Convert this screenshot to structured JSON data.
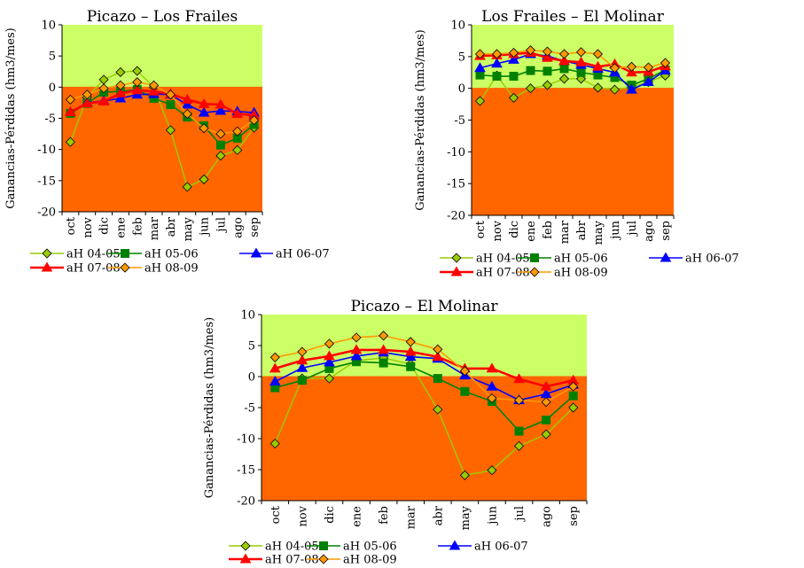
{
  "colors": {
    "gain_zone": "#ccff66",
    "loss_zone": "#ff6600",
    "series": {
      "aH 04-05": "#99cc00",
      "aH 05-06": "#008000",
      "aH 06-07": "#0000ff",
      "aH 07-08": "#ff0000",
      "aH 08-09": "#ff9900"
    }
  },
  "chart_data": [
    {
      "type": "line",
      "title": "Picazo – Los Frailes",
      "ylabel": "Ganancias-Pérdidas (hm3/mes)",
      "xlabel": "",
      "ylim": [
        -20,
        10
      ],
      "yticks": [
        10,
        5,
        0,
        -5,
        -10,
        -15,
        -20
      ],
      "categories": [
        "oct",
        "nov",
        "dic",
        "ene",
        "feb",
        "mar",
        "abr",
        "may",
        "jun",
        "jul",
        "ago",
        "sep"
      ],
      "background_bands": [
        {
          "from": 0,
          "to": 10,
          "color": "#ccff66"
        },
        {
          "from": -20,
          "to": 0,
          "color": "#ff6600"
        }
      ],
      "legend_position": "bottom",
      "series": [
        {
          "name": "aH 04-05",
          "marker": "diamond",
          "values": [
            -8.8,
            -1.6,
            1.2,
            2.4,
            2.6,
            0.0,
            -6.9,
            -16.0,
            -14.8,
            -11.0,
            -10.1,
            -6.5
          ]
        },
        {
          "name": "aH 05-06",
          "marker": "square",
          "values": [
            -4.2,
            -2.6,
            -0.8,
            -0.7,
            -0.4,
            -1.8,
            -2.8,
            -4.8,
            -6.2,
            -9.3,
            -8.2,
            -6.0
          ]
        },
        {
          "name": "aH 06-07",
          "marker": "triangle",
          "values": [
            -4.0,
            -2.5,
            -2.2,
            -1.8,
            -1.2,
            -1.1,
            -1.2,
            -2.8,
            -4.1,
            -3.8,
            -3.9,
            -4.1
          ]
        },
        {
          "name": "aH 07-08",
          "marker": "triangle",
          "values": [
            -4.0,
            -2.6,
            -2.3,
            -1.0,
            -0.5,
            -0.7,
            -1.1,
            -2.0,
            -2.7,
            -2.8,
            -4.3,
            -4.5
          ]
        },
        {
          "name": "aH 08-09",
          "marker": "diamond",
          "values": [
            -2.0,
            -1.2,
            -0.2,
            0.3,
            0.8,
            0.3,
            -1.2,
            -4.3,
            -6.6,
            -7.5,
            -7.1,
            -5.3
          ]
        }
      ]
    },
    {
      "type": "line",
      "title": "Los Frailes – El Molinar",
      "ylabel": "Ganancias-Pérdidas (hm3/mes)",
      "xlabel": "",
      "ylim": [
        -20,
        10
      ],
      "yticks": [
        10,
        5,
        0,
        -5,
        -10,
        -15,
        -20
      ],
      "categories": [
        "oct",
        "nov",
        "dic",
        "ene",
        "feb",
        "mar",
        "abr",
        "may",
        "jun",
        "jul",
        "ago",
        "sep"
      ],
      "background_bands": [
        {
          "from": 0,
          "to": 10,
          "color": "#ccff66"
        },
        {
          "from": -20,
          "to": 0,
          "color": "#ff6600"
        }
      ],
      "legend_position": "bottom",
      "series": [
        {
          "name": "aH 04-05",
          "marker": "diamond",
          "values": [
            -2.0,
            2.0,
            -1.5,
            0.0,
            0.5,
            1.5,
            1.5,
            0.1,
            -0.2,
            0.2,
            1.0,
            2.0
          ]
        },
        {
          "name": "aH 05-06",
          "marker": "square",
          "values": [
            2.1,
            1.9,
            1.9,
            2.8,
            2.7,
            3.1,
            2.5,
            2.1,
            1.7,
            0.5,
            1.5,
            2.9
          ]
        },
        {
          "name": "aH 06-07",
          "marker": "triangle",
          "values": [
            3.2,
            3.9,
            4.5,
            5.4,
            5.1,
            4.3,
            3.7,
            3.1,
            2.5,
            -0.2,
            1.0,
            2.8
          ]
        },
        {
          "name": "aH 07-08",
          "marker": "triangle",
          "values": [
            5.1,
            5.2,
            5.4,
            5.6,
            4.8,
            4.3,
            4.1,
            3.4,
            3.8,
            2.5,
            2.6,
            3.5
          ]
        },
        {
          "name": "aH 08-09",
          "marker": "diamond",
          "values": [
            5.4,
            5.4,
            5.6,
            6.0,
            5.8,
            5.4,
            5.7,
            5.4,
            3.2,
            3.4,
            3.3,
            4.0
          ]
        }
      ]
    },
    {
      "type": "line",
      "title": "Picazo – El Molinar",
      "ylabel": "Ganancias-Pérdidas (hm3/mes)",
      "xlabel": "",
      "ylim": [
        -20,
        10
      ],
      "yticks": [
        10,
        5,
        0,
        -5,
        -10,
        -15,
        -20
      ],
      "categories": [
        "oct",
        "nov",
        "dic",
        "ene",
        "feb",
        "mar",
        "abr",
        "may",
        "jun",
        "jul",
        "ago",
        "sep"
      ],
      "background_bands": [
        {
          "from": 0,
          "to": 10,
          "color": "#ccff66"
        },
        {
          "from": -20,
          "to": 0,
          "color": "#ff6600"
        }
      ],
      "legend_position": "bottom",
      "series": [
        {
          "name": "aH 04-05",
          "marker": "diamond",
          "values": [
            -10.8,
            -0.3,
            -0.3,
            2.6,
            3.0,
            2.0,
            -5.3,
            -15.9,
            -15.1,
            -11.2,
            -9.3,
            -5.0
          ]
        },
        {
          "name": "aH 05-06",
          "marker": "square",
          "values": [
            -1.8,
            -0.6,
            1.3,
            2.4,
            2.2,
            1.6,
            -0.3,
            -2.4,
            -4.0,
            -8.8,
            -7.0,
            -3.1
          ]
        },
        {
          "name": "aH 06-07",
          "marker": "triangle",
          "values": [
            -0.8,
            1.4,
            2.3,
            3.3,
            3.9,
            3.2,
            2.9,
            0.2,
            -1.6,
            -3.8,
            -2.8,
            -1.3
          ]
        },
        {
          "name": "aH 07-08",
          "marker": "triangle",
          "values": [
            1.3,
            2.6,
            3.3,
            4.3,
            4.3,
            4.0,
            3.2,
            1.3,
            1.3,
            -0.4,
            -1.6,
            -0.6
          ]
        },
        {
          "name": "aH 08-09",
          "marker": "diamond",
          "values": [
            3.1,
            4.0,
            5.3,
            6.3,
            6.6,
            5.6,
            4.4,
            0.9,
            -3.5,
            -3.8,
            -4.1,
            -1.6
          ]
        }
      ]
    }
  ]
}
